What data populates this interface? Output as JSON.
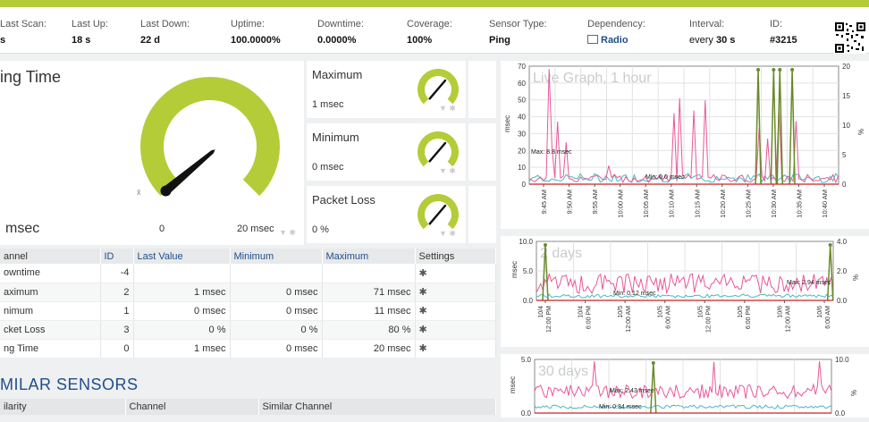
{
  "stats": [
    {
      "label": "Last Scan:",
      "value": "s"
    },
    {
      "label": "Last Up:",
      "value": "18 s"
    },
    {
      "label": "Last Down:",
      "value": "22 d"
    },
    {
      "label": "Uptime:",
      "value": "100.0000%"
    },
    {
      "label": "Downtime:",
      "value": "0.0000%"
    },
    {
      "label": "Coverage:",
      "value": "100%"
    },
    {
      "label": "Sensor Type:",
      "value": "Ping"
    },
    {
      "label": "Dependency:",
      "value": "Radio"
    },
    {
      "label": "Interval:",
      "value_prefix": "every ",
      "value": "30 s"
    },
    {
      "label": "ID:",
      "value": "#3215"
    }
  ],
  "main_gauge": {
    "title": "ing Time",
    "value_text": "msec",
    "scale_min": "0",
    "scale_max": "20 msec",
    "avg_marker": "x̄",
    "level_fraction": 0.05
  },
  "small_gauges": [
    {
      "title": "Maximum",
      "value": "1 msec",
      "level_fraction": 0.55
    },
    {
      "title": "Minimum",
      "value": "0 msec",
      "level_fraction": 0.55
    },
    {
      "title": "Packet Loss",
      "value": "0 %",
      "level_fraction": 0.55
    }
  ],
  "channels_table": {
    "headers": [
      "annel",
      "ID",
      "Last Value",
      "Minimum",
      "Maximum",
      "Settings"
    ],
    "rows": [
      {
        "channel": "owntime",
        "id": "-4",
        "last": "",
        "min": "",
        "max": ""
      },
      {
        "channel": "aximum",
        "id": "2",
        "last": "1 msec",
        "min": "0 msec",
        "max": "71 msec"
      },
      {
        "channel": "nimum",
        "id": "1",
        "last": "0 msec",
        "min": "0 msec",
        "max": "11 msec"
      },
      {
        "channel": "cket Loss",
        "id": "3",
        "last": "0 %",
        "min": "0 %",
        "max": "80 %"
      },
      {
        "channel": "ng Time",
        "id": "0",
        "last": "1 msec",
        "min": "0 msec",
        "max": "20 msec"
      }
    ]
  },
  "similar": {
    "title": "MILAR SENSORS",
    "headers": [
      "ilarity",
      "Channel",
      "Similar Channel"
    ]
  },
  "graphs": [
    {
      "title": "Live Graph, 1 hour",
      "ylabel": "msec",
      "y2label": "%",
      "yticks": [
        "0",
        "10",
        "20",
        "30",
        "40",
        "50",
        "60",
        "70"
      ],
      "y2ticks": [
        "0",
        "5",
        "10",
        "15",
        "20"
      ],
      "xticks": [
        "9:45 AM",
        "9:50 AM",
        "9:55 AM",
        "10:00 AM",
        "10:05 AM",
        "10:10 AM",
        "10:15 AM",
        "10:20 AM",
        "10:25 AM",
        "10:30 AM",
        "10:35 AM",
        "10:40 AM"
      ],
      "max_note": "Max: 8.8 msec",
      "min_note": "Min: 0.0 msec"
    },
    {
      "title": "2 days",
      "ylabel": "msec",
      "y2label": "%",
      "yticks": [
        "0.0",
        "5.0",
        "10.0"
      ],
      "y2ticks": [
        "0.0",
        "2.0",
        "4.0"
      ],
      "xticks": [
        "10/4 12:00 PM",
        "10/4 6:00 PM",
        "10/5 12:00 AM",
        "10/5 6:00 AM",
        "10/5 12:00 PM",
        "10/5 6:00 PM",
        "10/6 12:00 AM",
        "10/6 6:00 AM"
      ],
      "max_note": "Max: 2.94 msec",
      "min_note": "Min: 0.12 msec"
    },
    {
      "title": "30 days",
      "ylabel": "msec",
      "y2label": "%",
      "yticks": [
        "0.0",
        "5.0"
      ],
      "y2ticks": [
        "0.0",
        "10.0"
      ],
      "xticks": [],
      "max_note": "Max: 2.43 msec",
      "min_note": "Min: 0.34 msec"
    }
  ],
  "colors": {
    "accent": "#b4cc38",
    "ping": "#e8589a",
    "loss": "#6a8a2a",
    "min": "#4bb8c0",
    "link": "#1f4e8c"
  }
}
